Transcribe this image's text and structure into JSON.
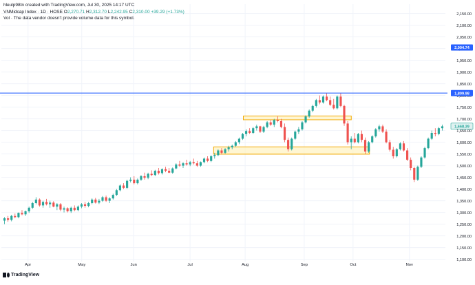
{
  "header": {
    "created_by": "hleulp98tn created with TradingView.com, Jul 30, 2025 14:17 UTC",
    "symbol_line": "VNMidcap Index · 1D · HOSE",
    "ohlc": {
      "o_label": "O",
      "o_value": "2,270.71",
      "h_label": "H",
      "h_value": "2,312.70",
      "l_label": "L",
      "l_value": "2,242.95",
      "c_label": "C",
      "c_value": "2,310.00",
      "change": "+39.29 (+1.73%)"
    },
    "volume_note": "Vol · The data vendor doesn't provide volume data for this symbol."
  },
  "brand": {
    "logo_text": "TradingView"
  },
  "colors": {
    "up": "#26a69a",
    "down": "#ef5350",
    "hline": "#2962ff",
    "zone_fill": "#fff3c4",
    "zone_border": "#f2a900",
    "grid": "#f0f3fa",
    "axis_text": "#131722",
    "price_label_bg": "#2962ff",
    "last_label_bg": "#e0f2f1",
    "last_label_fg": "#26a69a"
  },
  "chart_data": {
    "type": "candlestick",
    "title": "VNMidcap Index · 1D · HOSE",
    "y_axis": {
      "min": 1090,
      "max": 2190,
      "ticks": [
        2150,
        2100,
        2050,
        2000,
        1950,
        1900,
        1850,
        1800,
        1750,
        1700,
        1650,
        1600,
        1550,
        1500,
        1450,
        1400,
        1350,
        1300,
        1250,
        1200,
        1150,
        1100
      ],
      "tick_labels": [
        "2,150.00",
        "2,100.00",
        "2,050.00",
        "2,000.00",
        "1,950.00",
        "1,900.00",
        "1,850.00",
        "1,800.00",
        "1,750.00",
        "1,700.00",
        "1,650.00",
        "1,600.00",
        "1,550.00",
        "1,500.00",
        "1,450.00",
        "1,400.00",
        "1,350.00",
        "1,300.00",
        "1,250.00",
        "1,200.00",
        "1,150.00",
        "1,100.00"
      ]
    },
    "x_axis": {
      "months": [
        {
          "label": "Apr",
          "pos": 0.06
        },
        {
          "label": "May",
          "pos": 0.181
        },
        {
          "label": "Jun",
          "pos": 0.298
        },
        {
          "label": "Jul",
          "pos": 0.425
        },
        {
          "label": "Aug",
          "pos": 0.549
        },
        {
          "label": "Sep",
          "pos": 0.682
        },
        {
          "label": "Oct",
          "pos": 0.792
        },
        {
          "label": "Nov",
          "pos": 0.919
        }
      ]
    },
    "price_lines": [
      {
        "value": 1809.98,
        "label": "1,809.98"
      }
    ],
    "axis_labels": [
      {
        "value": 2004.74,
        "label": "2,004.74",
        "style": "blue"
      },
      {
        "value": 1668.39,
        "label": "1,668.39",
        "style": "last"
      }
    ],
    "zones": [
      {
        "pos_start": 0.545,
        "pos_end": 0.788,
        "low": 1696,
        "high": 1712
      },
      {
        "pos_start": 0.478,
        "pos_end": 0.829,
        "low": 1549,
        "high": 1580
      }
    ],
    "candles": [
      [
        1265,
        1280,
        1250,
        1275
      ],
      [
        1275,
        1285,
        1260,
        1268
      ],
      [
        1268,
        1290,
        1262,
        1285
      ],
      [
        1285,
        1295,
        1275,
        1280
      ],
      [
        1280,
        1300,
        1275,
        1298
      ],
      [
        1298,
        1310,
        1288,
        1292
      ],
      [
        1292,
        1308,
        1285,
        1305
      ],
      [
        1305,
        1325,
        1298,
        1320
      ],
      [
        1320,
        1345,
        1315,
        1340
      ],
      [
        1340,
        1365,
        1335,
        1355
      ],
      [
        1355,
        1360,
        1325,
        1330
      ],
      [
        1330,
        1350,
        1320,
        1345
      ],
      [
        1345,
        1358,
        1330,
        1335
      ],
      [
        1335,
        1350,
        1320,
        1342
      ],
      [
        1342,
        1348,
        1322,
        1325
      ],
      [
        1325,
        1340,
        1310,
        1335
      ],
      [
        1335,
        1340,
        1305,
        1312
      ],
      [
        1312,
        1325,
        1300,
        1318
      ],
      [
        1318,
        1322,
        1300,
        1305
      ],
      [
        1305,
        1325,
        1298,
        1320
      ],
      [
        1320,
        1330,
        1305,
        1310
      ],
      [
        1310,
        1330,
        1305,
        1325
      ],
      [
        1325,
        1340,
        1318,
        1335
      ],
      [
        1335,
        1345,
        1320,
        1328
      ],
      [
        1328,
        1345,
        1322,
        1340
      ],
      [
        1340,
        1360,
        1335,
        1355
      ],
      [
        1355,
        1362,
        1338,
        1342
      ],
      [
        1342,
        1358,
        1336,
        1350
      ],
      [
        1350,
        1370,
        1345,
        1365
      ],
      [
        1365,
        1372,
        1345,
        1350
      ],
      [
        1350,
        1365,
        1340,
        1360
      ],
      [
        1360,
        1380,
        1355,
        1375
      ],
      [
        1375,
        1400,
        1370,
        1395
      ],
      [
        1395,
        1420,
        1390,
        1415
      ],
      [
        1415,
        1425,
        1400,
        1405
      ],
      [
        1405,
        1440,
        1400,
        1435
      ],
      [
        1435,
        1450,
        1428,
        1440
      ],
      [
        1440,
        1455,
        1420,
        1425
      ],
      [
        1425,
        1445,
        1420,
        1440
      ],
      [
        1440,
        1460,
        1435,
        1455
      ],
      [
        1455,
        1470,
        1440,
        1448
      ],
      [
        1448,
        1470,
        1442,
        1465
      ],
      [
        1465,
        1480,
        1455,
        1460
      ],
      [
        1460,
        1482,
        1455,
        1478
      ],
      [
        1478,
        1490,
        1462,
        1468
      ],
      [
        1468,
        1488,
        1462,
        1485
      ],
      [
        1485,
        1495,
        1472,
        1478
      ],
      [
        1478,
        1490,
        1468,
        1470
      ],
      [
        1470,
        1492,
        1465,
        1488
      ],
      [
        1488,
        1510,
        1484,
        1505
      ],
      [
        1505,
        1520,
        1495,
        1500
      ],
      [
        1500,
        1515,
        1490,
        1510
      ],
      [
        1510,
        1525,
        1500,
        1505
      ],
      [
        1505,
        1520,
        1498,
        1515
      ],
      [
        1515,
        1530,
        1505,
        1510
      ],
      [
        1510,
        1520,
        1495,
        1500
      ],
      [
        1500,
        1518,
        1495,
        1515
      ],
      [
        1515,
        1535,
        1510,
        1530
      ],
      [
        1530,
        1540,
        1515,
        1520
      ],
      [
        1520,
        1545,
        1515,
        1540
      ],
      [
        1540,
        1555,
        1530,
        1545
      ],
      [
        1545,
        1570,
        1540,
        1565
      ],
      [
        1565,
        1575,
        1548,
        1555
      ],
      [
        1555,
        1575,
        1550,
        1570
      ],
      [
        1570,
        1585,
        1560,
        1578
      ],
      [
        1578,
        1590,
        1570,
        1585
      ],
      [
        1585,
        1605,
        1580,
        1600
      ],
      [
        1600,
        1620,
        1592,
        1615
      ],
      [
        1615,
        1640,
        1610,
        1635
      ],
      [
        1635,
        1655,
        1625,
        1648
      ],
      [
        1648,
        1660,
        1635,
        1640
      ],
      [
        1640,
        1665,
        1635,
        1660
      ],
      [
        1660,
        1675,
        1650,
        1668
      ],
      [
        1668,
        1670,
        1640,
        1645
      ],
      [
        1645,
        1670,
        1640,
        1665
      ],
      [
        1665,
        1690,
        1660,
        1685
      ],
      [
        1685,
        1695,
        1670,
        1675
      ],
      [
        1675,
        1700,
        1665,
        1695
      ],
      [
        1695,
        1710,
        1685,
        1690
      ],
      [
        1690,
        1700,
        1660,
        1665
      ],
      [
        1665,
        1680,
        1600,
        1610
      ],
      [
        1610,
        1620,
        1560,
        1570
      ],
      [
        1570,
        1620,
        1565,
        1615
      ],
      [
        1615,
        1650,
        1610,
        1645
      ],
      [
        1645,
        1665,
        1635,
        1655
      ],
      [
        1655,
        1690,
        1650,
        1685
      ],
      [
        1685,
        1715,
        1680,
        1710
      ],
      [
        1710,
        1740,
        1705,
        1735
      ],
      [
        1735,
        1760,
        1728,
        1755
      ],
      [
        1755,
        1785,
        1748,
        1780
      ],
      [
        1780,
        1800,
        1762,
        1770
      ],
      [
        1770,
        1800,
        1765,
        1795
      ],
      [
        1795,
        1810,
        1775,
        1780
      ],
      [
        1780,
        1795,
        1755,
        1760
      ],
      [
        1760,
        1785,
        1740,
        1745
      ],
      [
        1745,
        1800,
        1740,
        1795
      ],
      [
        1795,
        1810,
        1750,
        1755
      ],
      [
        1755,
        1760,
        1670,
        1680
      ],
      [
        1680,
        1690,
        1590,
        1600
      ],
      [
        1600,
        1625,
        1570,
        1615
      ],
      [
        1615,
        1640,
        1595,
        1600
      ],
      [
        1600,
        1640,
        1595,
        1635
      ],
      [
        1635,
        1650,
        1600,
        1610
      ],
      [
        1610,
        1620,
        1550,
        1560
      ],
      [
        1560,
        1605,
        1555,
        1600
      ],
      [
        1600,
        1630,
        1595,
        1625
      ],
      [
        1625,
        1660,
        1620,
        1655
      ],
      [
        1655,
        1675,
        1645,
        1668
      ],
      [
        1668,
        1675,
        1640,
        1645
      ],
      [
        1645,
        1655,
        1595,
        1600
      ],
      [
        1600,
        1610,
        1560,
        1568
      ],
      [
        1568,
        1580,
        1530,
        1540
      ],
      [
        1540,
        1575,
        1535,
        1570
      ],
      [
        1570,
        1600,
        1565,
        1595
      ],
      [
        1595,
        1605,
        1560,
        1565
      ],
      [
        1565,
        1575,
        1520,
        1525
      ],
      [
        1525,
        1535,
        1480,
        1490
      ],
      [
        1490,
        1495,
        1430,
        1440
      ],
      [
        1440,
        1500,
        1435,
        1495
      ],
      [
        1495,
        1540,
        1490,
        1535
      ],
      [
        1535,
        1580,
        1530,
        1575
      ],
      [
        1575,
        1620,
        1570,
        1615
      ],
      [
        1615,
        1650,
        1610,
        1640
      ],
      [
        1640,
        1660,
        1625,
        1635
      ],
      [
        1635,
        1665,
        1630,
        1660
      ],
      [
        1660,
        1675,
        1650,
        1668
      ]
    ]
  }
}
